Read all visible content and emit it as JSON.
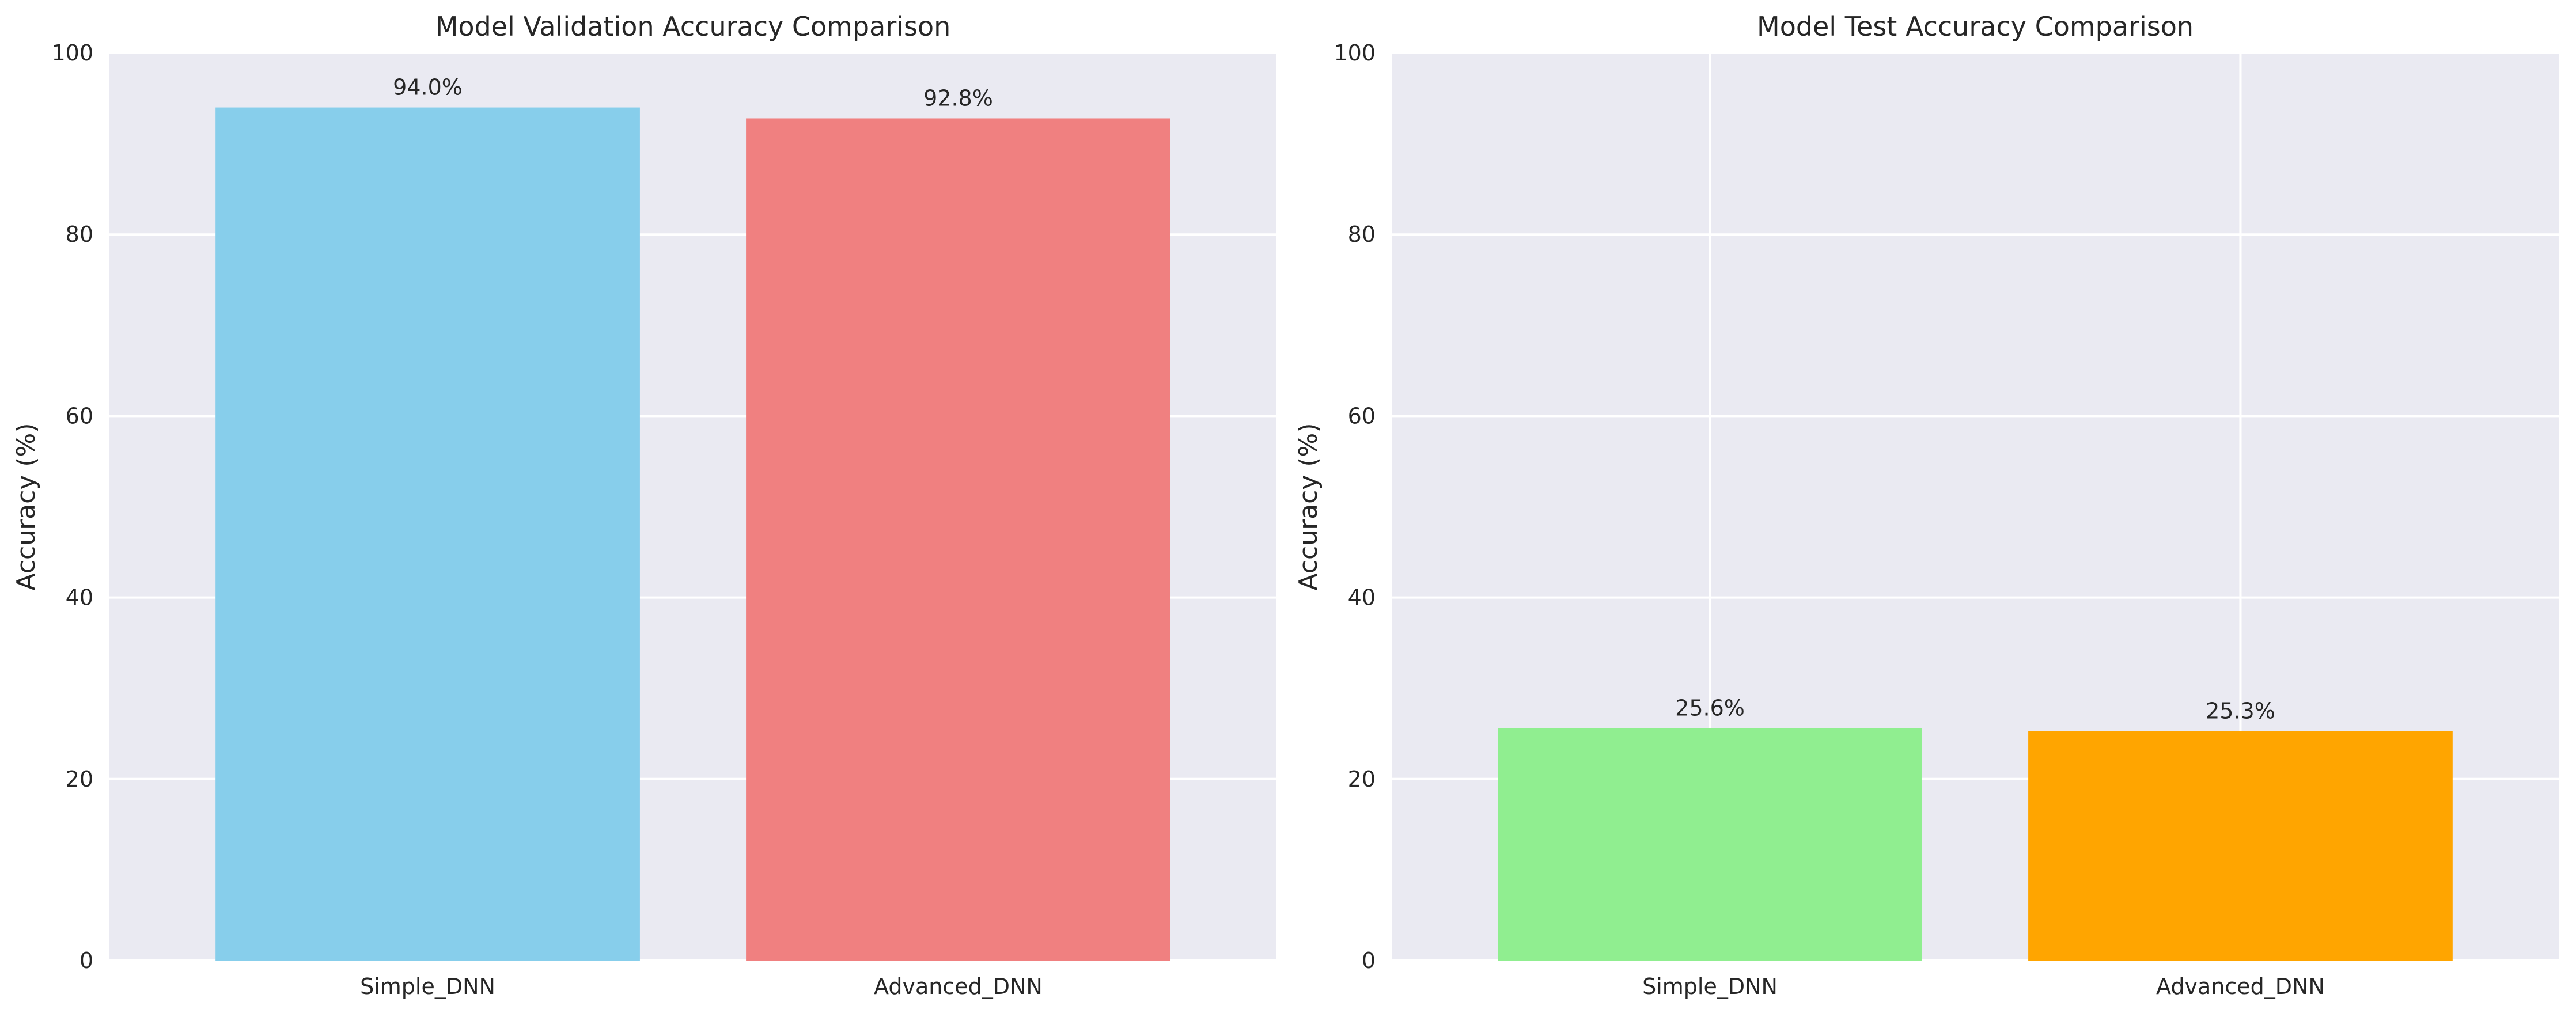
{
  "chart_data": [
    {
      "type": "bar",
      "title": "Model Validation Accuracy Comparison",
      "xlabel": "",
      "ylabel": "Accuracy (%)",
      "ylim": [
        0,
        100
      ],
      "yticks": [
        0,
        20,
        40,
        60,
        80,
        100
      ],
      "categories": [
        "Simple_DNN",
        "Advanced_DNN"
      ],
      "values": [
        94.0,
        92.8
      ],
      "value_labels": [
        "94.0%",
        "92.8%"
      ],
      "colors": [
        "#87ceeb",
        "#f08080"
      ],
      "grid": "horizontal"
    },
    {
      "type": "bar",
      "title": "Model Test Accuracy Comparison",
      "xlabel": "",
      "ylabel": "Accuracy (%)",
      "ylim": [
        0,
        100
      ],
      "yticks": [
        0,
        20,
        40,
        60,
        80,
        100
      ],
      "categories": [
        "Simple_DNN",
        "Advanced_DNN"
      ],
      "values": [
        25.6,
        25.3
      ],
      "value_labels": [
        "25.6%",
        "25.3%"
      ],
      "colors": [
        "#90ee90",
        "#ffa500"
      ],
      "grid": "both"
    }
  ]
}
